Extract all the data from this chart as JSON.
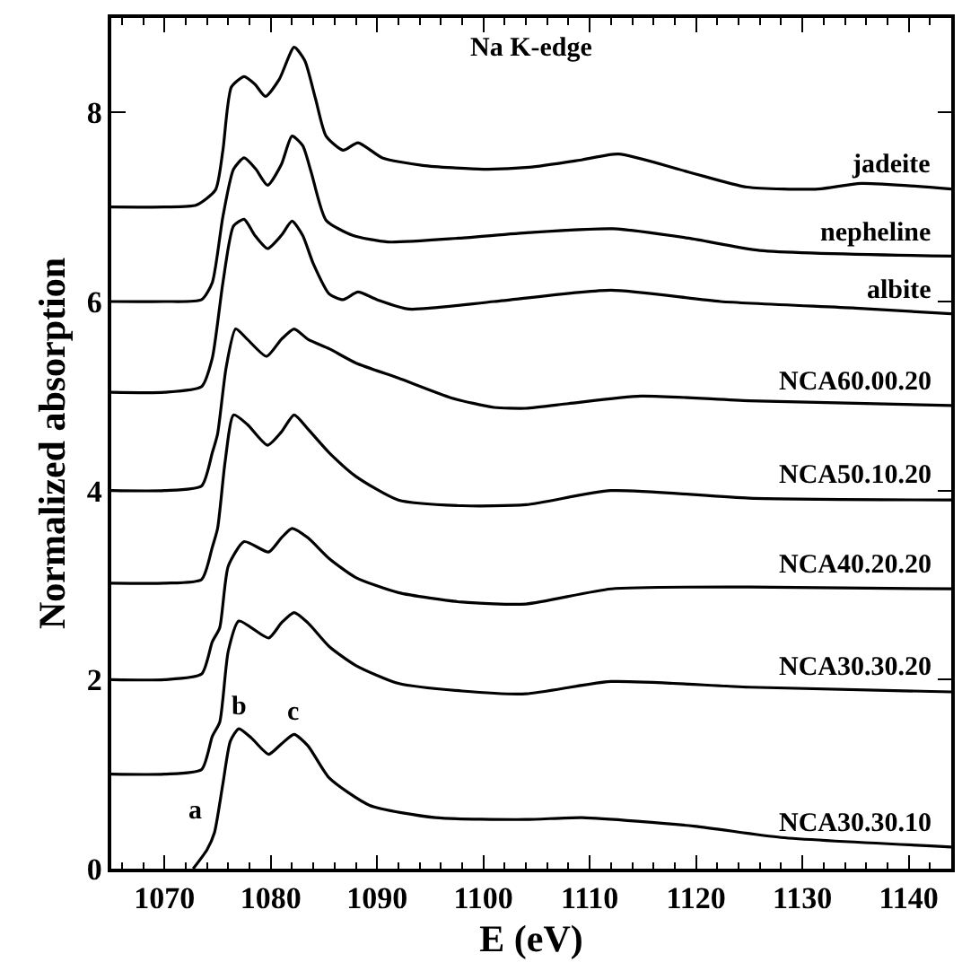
{
  "chart_data": {
    "type": "line",
    "xlabel": "E (eV)",
    "ylabel": "Normalized absorption",
    "annotations": [
      "Na K-edge",
      {
        "text": "a",
        "x": 1074.7,
        "y": 0.38
      },
      {
        "text": "b",
        "x": 1077,
        "y": 1.48
      },
      {
        "text": "c",
        "x": 1082.2,
        "y": 1.42
      }
    ],
    "xlim": [
      1065,
      1144
    ],
    "ylim": [
      0,
      9
    ],
    "xticks": [
      {
        "value": 1066,
        "label": null
      },
      {
        "value": 1068,
        "label": null
      },
      1070,
      {
        "value": 1072,
        "label": null
      },
      {
        "value": 1074,
        "label": null
      },
      {
        "value": 1076,
        "label": null
      },
      {
        "value": 1078,
        "label": null
      },
      1080,
      {
        "value": 1082,
        "label": null
      },
      {
        "value": 1084,
        "label": null
      },
      {
        "value": 1086,
        "label": null
      },
      {
        "value": 1088,
        "label": null
      },
      1090,
      {
        "value": 1092,
        "label": null
      },
      {
        "value": 1094,
        "label": null
      },
      {
        "value": 1096,
        "label": null
      },
      {
        "value": 1098,
        "label": null
      },
      1100,
      {
        "value": 1102,
        "label": null
      },
      {
        "value": 1104,
        "label": null
      },
      {
        "value": 1106,
        "label": null
      },
      {
        "value": 1108,
        "label": null
      },
      1110,
      {
        "value": 1112,
        "label": null
      },
      {
        "value": 1114,
        "label": null
      },
      {
        "value": 1116,
        "label": null
      },
      {
        "value": 1118,
        "label": null
      },
      1120,
      {
        "value": 1122,
        "label": null
      },
      {
        "value": 1124,
        "label": null
      },
      {
        "value": 1126,
        "label": null
      },
      {
        "value": 1128,
        "label": null
      },
      1130,
      {
        "value": 1132,
        "label": null
      },
      {
        "value": 1134,
        "label": null
      },
      {
        "value": 1136,
        "label": null
      },
      {
        "value": 1138,
        "label": null
      },
      1140,
      {
        "value": 1142,
        "label": null
      }
    ],
    "yticks": [
      0,
      2,
      4,
      6,
      8
    ],
    "legend": "right",
    "marker": "none",
    "line_style": "solid",
    "series": [
      {
        "name": "jadeite",
        "color": "#000000",
        "x": [
          1065,
          1070,
          1073,
          1074.8,
          1075.5,
          1076.3,
          1077.5,
          1078.5,
          1079.5,
          1080.8,
          1082.2,
          1083.2,
          1084.2,
          1085.2,
          1086.8,
          1088.2,
          1090.5,
          1094.3,
          1100,
          1104.3,
          1109.3,
          1112.7,
          1119.3,
          1124.8,
          1131.5,
          1135.5,
          1144
        ],
        "values": [
          7.0,
          7.0,
          7.02,
          7.18,
          7.6,
          8.27,
          8.38,
          8.3,
          8.17,
          8.35,
          8.69,
          8.55,
          8.15,
          7.75,
          7.6,
          7.68,
          7.52,
          7.44,
          7.4,
          7.42,
          7.5,
          7.56,
          7.37,
          7.21,
          7.19,
          7.25,
          7.19
        ]
      },
      {
        "name": "nepheline",
        "color": "#000000",
        "x": [
          1065,
          1070,
          1073.5,
          1074.5,
          1075.5,
          1076.5,
          1077.5,
          1078.6,
          1079.7,
          1081,
          1082,
          1083,
          1083.8,
          1085.2,
          1087.7,
          1091,
          1097.7,
          1104.3,
          1112.2,
          1119.3,
          1126,
          1144
        ],
        "values": [
          6.0,
          6.0,
          6.02,
          6.2,
          6.9,
          7.4,
          7.52,
          7.4,
          7.23,
          7.45,
          7.75,
          7.65,
          7.37,
          6.86,
          6.7,
          6.63,
          6.67,
          6.73,
          6.77,
          6.67,
          6.54,
          6.48
        ]
      },
      {
        "name": "albite",
        "color": "#000000",
        "x": [
          1065,
          1070,
          1073.5,
          1074.5,
          1075.5,
          1076.5,
          1077.5,
          1078.5,
          1079.7,
          1081,
          1082,
          1083,
          1084,
          1085.5,
          1086.8,
          1088.2,
          1090,
          1093,
          1101,
          1112,
          1122.3,
          1135,
          1144
        ],
        "values": [
          5.04,
          5.04,
          5.1,
          5.4,
          6.2,
          6.8,
          6.87,
          6.7,
          6.56,
          6.7,
          6.85,
          6.7,
          6.4,
          6.08,
          6.02,
          6.1,
          6.02,
          5.92,
          6.0,
          6.12,
          6.0,
          5.93,
          5.87
        ]
      },
      {
        "name": "NCA60.00.20",
        "color": "#000000",
        "x": [
          1065,
          1070,
          1073.5,
          1074.5,
          1075,
          1075.8,
          1076.7,
          1077.8,
          1079.6,
          1081,
          1082.2,
          1083.5,
          1085.5,
          1088,
          1092,
          1097,
          1101,
          1104,
          1108,
          1114.8,
          1125,
          1144
        ],
        "values": [
          4.0,
          4.0,
          4.05,
          4.4,
          4.6,
          5.3,
          5.71,
          5.6,
          5.42,
          5.6,
          5.71,
          5.6,
          5.5,
          5.35,
          5.19,
          4.98,
          4.88,
          4.87,
          4.92,
          5.0,
          4.95,
          4.9
        ]
      },
      {
        "name": "NCA50.10.20",
        "color": "#000000",
        "x": [
          1065,
          1070,
          1073.5,
          1074.5,
          1075,
          1075.7,
          1076.5,
          1077.8,
          1079.7,
          1081,
          1082.2,
          1083.5,
          1085.5,
          1088,
          1092,
          1098,
          1104,
          1112,
          1125,
          1144
        ],
        "values": [
          3.02,
          3.02,
          3.06,
          3.4,
          3.6,
          4.3,
          4.8,
          4.7,
          4.48,
          4.62,
          4.8,
          4.65,
          4.4,
          4.15,
          3.9,
          3.84,
          3.85,
          4.0,
          3.92,
          3.9
        ]
      },
      {
        "name": "NCA40.20.20",
        "color": "#000000",
        "x": [
          1065,
          1070,
          1073.5,
          1074.5,
          1075.2,
          1076,
          1077.5,
          1079.8,
          1081,
          1082,
          1083.5,
          1085.5,
          1088,
          1092,
          1098,
          1104,
          1112,
          1125,
          1144
        ],
        "values": [
          2.0,
          2.0,
          2.06,
          2.4,
          2.55,
          3.2,
          3.46,
          3.35,
          3.5,
          3.6,
          3.5,
          3.28,
          3.08,
          2.92,
          2.82,
          2.8,
          2.96,
          2.98,
          2.96
        ]
      },
      {
        "name": "NCA30.30.20",
        "color": "#000000",
        "x": [
          1065,
          1070,
          1073.5,
          1074.5,
          1075.2,
          1076,
          1077,
          1079.8,
          1081,
          1082.2,
          1083.5,
          1085.5,
          1088,
          1092,
          1098,
          1104,
          1112,
          1125,
          1144
        ],
        "values": [
          1.0,
          1.0,
          1.05,
          1.4,
          1.55,
          2.3,
          2.62,
          2.44,
          2.6,
          2.71,
          2.6,
          2.35,
          2.15,
          1.96,
          1.88,
          1.85,
          1.98,
          1.92,
          1.87
        ]
      },
      {
        "name": "NCA30.30.10",
        "color": "#000000",
        "x": [
          1072.7,
          1074,
          1074.7,
          1075.5,
          1076.2,
          1077,
          1078.2,
          1079.8,
          1081,
          1082.2,
          1083.5,
          1085.5,
          1089.3,
          1095.5,
          1104,
          1109.3,
          1119.8,
          1128,
          1144
        ],
        "values": [
          0,
          0.2,
          0.38,
          0.9,
          1.35,
          1.48,
          1.38,
          1.21,
          1.32,
          1.42,
          1.3,
          0.96,
          0.67,
          0.54,
          0.52,
          0.54,
          0.45,
          0.33,
          0.23
        ]
      }
    ]
  }
}
